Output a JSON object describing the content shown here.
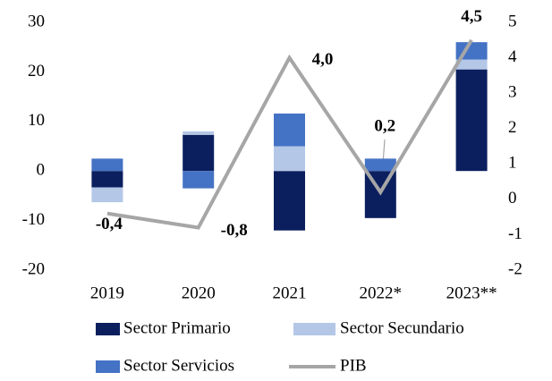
{
  "chart_data": {
    "type": "bar",
    "categories": [
      "2019",
      "2020",
      "2021",
      "2022*",
      "2023**"
    ],
    "series": [
      {
        "name": "Sector Primario",
        "color": "#0b1f5e",
        "values": [
          -3.3,
          7.3,
          -12,
          -9.5,
          20.5
        ]
      },
      {
        "name": "Sector Secundario",
        "color": "#b4c7e7",
        "values": [
          -3,
          0.7,
          5,
          0,
          2
        ]
      },
      {
        "name": "Sector Servicios",
        "color": "#4472c4",
        "values": [
          2.5,
          -3.5,
          6.6,
          2.5,
          3.5
        ]
      },
      {
        "name": "PIB",
        "type": "line",
        "axis": "y2",
        "color": "#a6a6a6",
        "values": [
          -0.4,
          -0.8,
          4.0,
          0.2,
          4.5
        ],
        "value_labels": [
          "-0,4",
          "-0,8",
          "4,0",
          "0,2",
          "4,5"
        ]
      }
    ],
    "ylim": [
      -20,
      30
    ],
    "yticks": [
      -20,
      -10,
      0,
      10,
      20,
      30
    ],
    "y2lim": [
      -2,
      5
    ],
    "y2ticks": [
      -2,
      -1,
      0,
      1,
      2,
      3,
      4,
      5
    ],
    "grid": false
  }
}
